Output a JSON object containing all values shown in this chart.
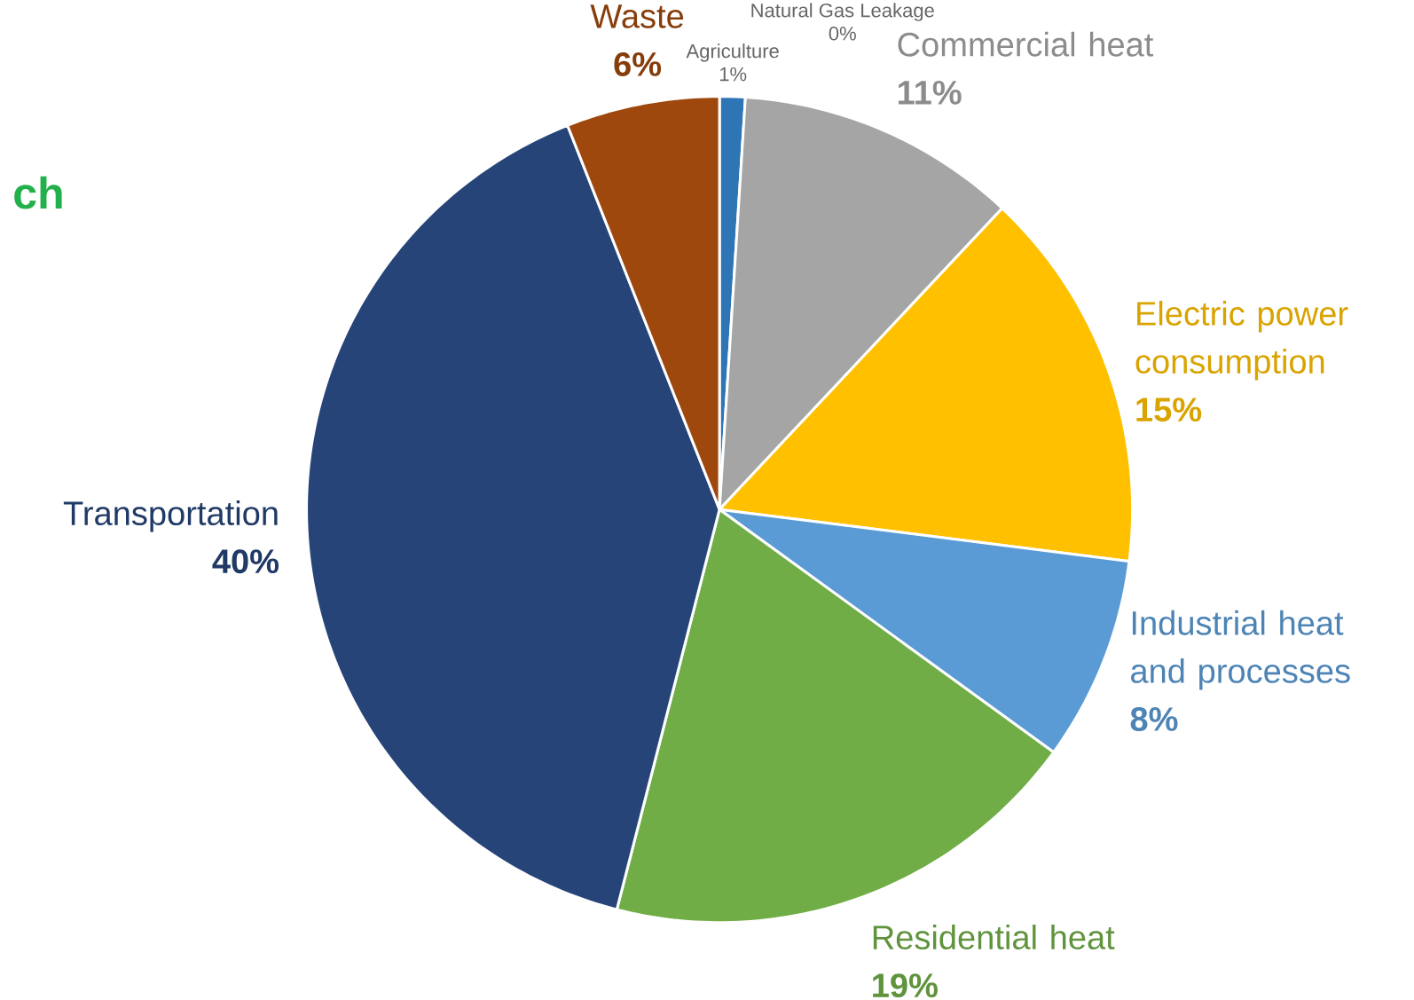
{
  "chart_data": {
    "type": "pie",
    "categories": [
      "Agriculture",
      "Natural Gas Leakage",
      "Commercial heat",
      "Electric power consumption",
      "Industrial heat and processes",
      "Residential heat",
      "Transportation",
      "Waste"
    ],
    "values": [
      1,
      0,
      11,
      15,
      8,
      19,
      40,
      6
    ],
    "value_labels": [
      "1%",
      "0%",
      "11%",
      "15%",
      "8%",
      "19%",
      "40%",
      "6%"
    ],
    "colors": [
      "#2e75b6",
      "#ed7d31",
      "#a5a5a5",
      "#ffc000",
      "#5b9bd5",
      "#70ad47",
      "#264478",
      "#9e480e"
    ],
    "data_labels": true,
    "annotations": [
      "ch"
    ]
  }
}
